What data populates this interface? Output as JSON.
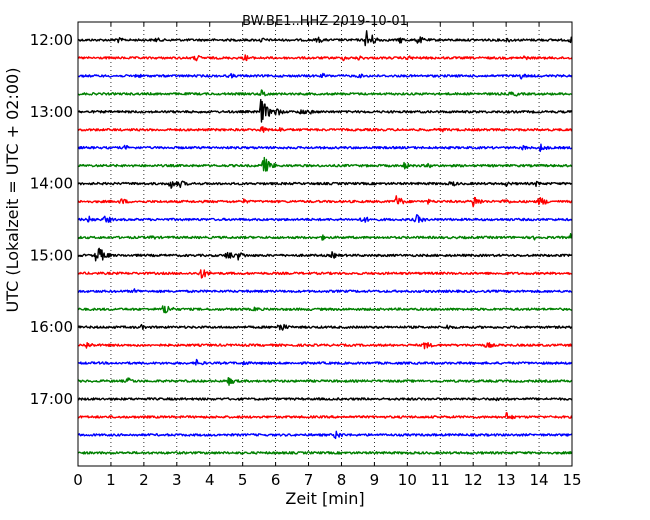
{
  "chart_data": {
    "type": "line",
    "title": "BW.BE1..HHZ 2019-10-01",
    "xlabel": "Zeit  [min]",
    "ylabel": "UTC (Lokalzeit = UTC + 02:00)",
    "xlim": [
      0,
      15
    ],
    "x_ticks": [
      "0",
      "1",
      "2",
      "3",
      "4",
      "5",
      "6",
      "7",
      "8",
      "9",
      "10",
      "11",
      "12",
      "13",
      "14",
      "15"
    ],
    "y_ticks": [
      "12:00",
      "13:00",
      "14:00",
      "15:00",
      "16:00",
      "17:00"
    ],
    "grid": "vertical dotted",
    "colors": [
      "#000000",
      "#ff0000",
      "#0000ff",
      "#008000"
    ],
    "series": [
      {
        "start": "12:00",
        "color": "#000000",
        "events": [
          [
            1.15,
            4
          ],
          [
            2.35,
            3
          ],
          [
            5.55,
            3
          ],
          [
            7.25,
            4
          ],
          [
            8.75,
            12
          ],
          [
            9.75,
            4
          ],
          [
            10.3,
            5
          ],
          [
            13.0,
            3
          ],
          [
            14.9,
            4
          ]
        ]
      },
      {
        "start": "12:15",
        "color": "#ff0000",
        "events": [
          [
            3.55,
            4
          ],
          [
            5.05,
            4
          ],
          [
            8.05,
            3
          ],
          [
            8.5,
            3
          ],
          [
            10.0,
            3
          ],
          [
            13.5,
            3
          ]
        ]
      },
      {
        "start": "12:30",
        "color": "#0000ff",
        "events": [
          [
            1.75,
            3
          ],
          [
            4.6,
            3
          ],
          [
            7.4,
            3
          ],
          [
            8.5,
            3
          ],
          [
            13.4,
            4
          ]
        ]
      },
      {
        "start": "12:45",
        "color": "#008000",
        "events": [
          [
            5.55,
            5
          ],
          [
            13.1,
            3
          ],
          [
            13.25,
            3
          ]
        ]
      },
      {
        "start": "13:00",
        "color": "#000000",
        "events": [
          [
            5.55,
            14
          ],
          [
            6.0,
            5
          ],
          [
            6.75,
            4
          ],
          [
            7.0,
            3
          ]
        ]
      },
      {
        "start": "13:15",
        "color": "#ff0000",
        "events": [
          [
            5.55,
            4
          ],
          [
            6.1,
            3
          ],
          [
            11.0,
            3
          ]
        ]
      },
      {
        "start": "13:30",
        "color": "#0000ff",
        "events": [
          [
            1.4,
            3
          ],
          [
            14.0,
            5
          ],
          [
            13.5,
            3
          ]
        ]
      },
      {
        "start": "13:45",
        "color": "#008000",
        "events": [
          [
            5.6,
            11
          ],
          [
            9.9,
            4
          ],
          [
            10.6,
            3
          ]
        ]
      },
      {
        "start": "14:00",
        "color": "#000000",
        "events": [
          [
            2.8,
            6
          ],
          [
            3.1,
            4
          ],
          [
            11.3,
            4
          ],
          [
            13.0,
            3
          ],
          [
            13.9,
            3
          ]
        ]
      },
      {
        "start": "14:15",
        "color": "#ff0000",
        "events": [
          [
            1.3,
            4
          ],
          [
            5.0,
            3
          ],
          [
            9.65,
            7
          ],
          [
            10.6,
            3
          ],
          [
            12.0,
            7
          ],
          [
            12.9,
            4
          ],
          [
            14.0,
            6
          ]
        ]
      },
      {
        "start": "14:30",
        "color": "#0000ff",
        "events": [
          [
            0.3,
            4
          ],
          [
            0.8,
            5
          ],
          [
            8.6,
            5
          ],
          [
            10.25,
            6
          ]
        ]
      },
      {
        "start": "14:45",
        "color": "#008000",
        "events": [
          [
            2.2,
            3
          ],
          [
            7.4,
            3
          ],
          [
            13.85,
            3
          ],
          [
            14.95,
            4
          ]
        ]
      },
      {
        "start": "15:00",
        "color": "#000000",
        "events": [
          [
            0.55,
            12
          ],
          [
            4.5,
            6
          ],
          [
            4.85,
            5
          ],
          [
            7.7,
            4
          ]
        ]
      },
      {
        "start": "15:15",
        "color": "#ff0000",
        "events": [
          [
            3.7,
            7
          ]
        ]
      },
      {
        "start": "15:30",
        "color": "#0000ff",
        "events": [
          [
            1.7,
            3
          ]
        ]
      },
      {
        "start": "15:45",
        "color": "#008000",
        "events": [
          [
            2.6,
            7
          ],
          [
            5.35,
            3
          ]
        ]
      },
      {
        "start": "16:00",
        "color": "#000000",
        "events": [
          [
            1.9,
            3
          ],
          [
            6.1,
            6
          ],
          [
            11.2,
            3
          ]
        ]
      },
      {
        "start": "16:15",
        "color": "#ff0000",
        "events": [
          [
            0.25,
            4
          ],
          [
            10.5,
            5
          ],
          [
            12.4,
            4
          ]
        ]
      },
      {
        "start": "16:30",
        "color": "#0000ff",
        "events": [
          [
            3.6,
            4
          ],
          [
            5.0,
            3
          ]
        ]
      },
      {
        "start": "16:45",
        "color": "#008000",
        "events": [
          [
            1.5,
            4
          ],
          [
            4.55,
            5
          ]
        ]
      },
      {
        "start": "17:00",
        "color": "#000000",
        "events": [
          [
            12.7,
            3
          ]
        ]
      },
      {
        "start": "17:15",
        "color": "#ff0000",
        "events": [
          [
            13.0,
            5
          ]
        ]
      },
      {
        "start": "17:30",
        "color": "#0000ff",
        "events": [
          [
            7.8,
            5
          ]
        ]
      },
      {
        "start": "17:45",
        "color": "#008000",
        "events": []
      }
    ]
  }
}
